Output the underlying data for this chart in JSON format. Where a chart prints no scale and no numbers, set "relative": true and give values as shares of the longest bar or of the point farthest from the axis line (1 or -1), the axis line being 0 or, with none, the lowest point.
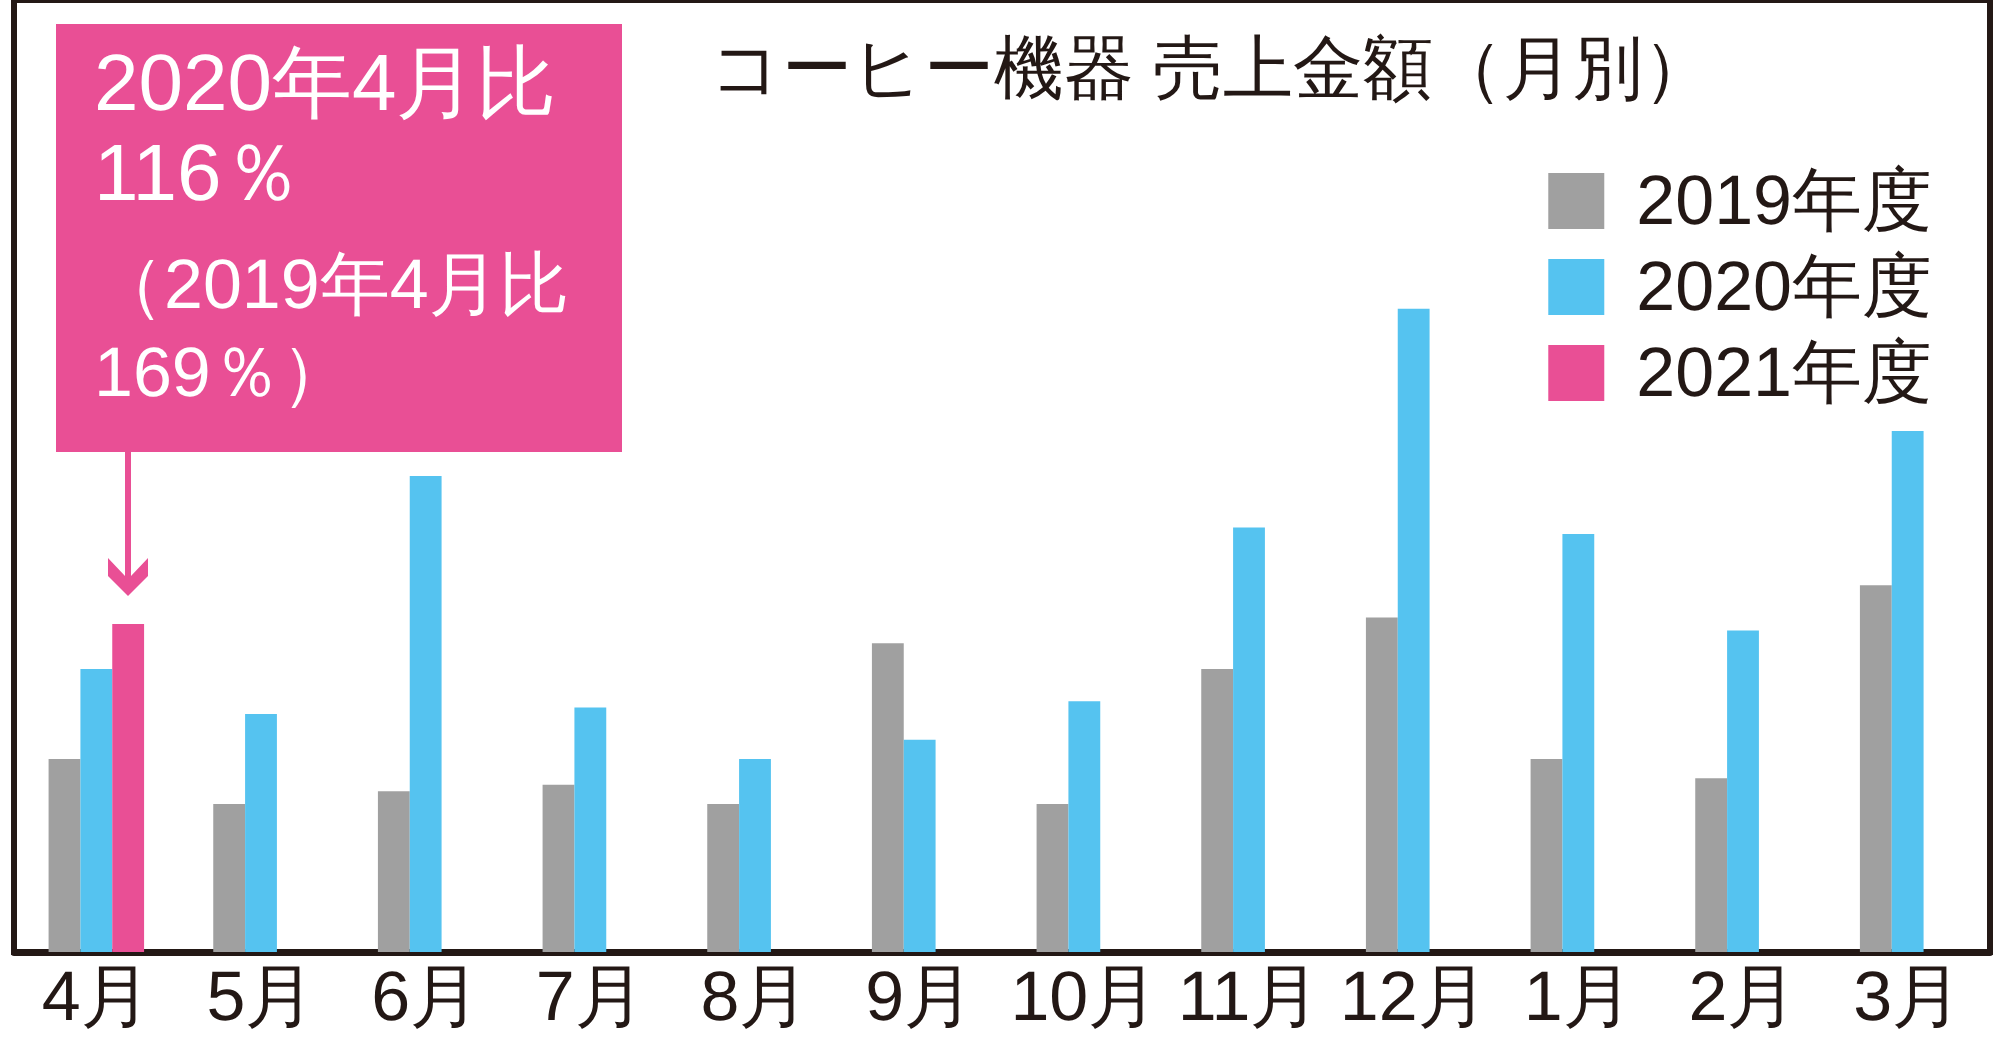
{
  "chart_data": {
    "type": "bar",
    "title": "コーヒー機器 売上金額（月別）",
    "categories": [
      "4月",
      "5月",
      "6月",
      "7月",
      "8月",
      "9月",
      "10月",
      "11月",
      "12月",
      "1月",
      "2月",
      "3月"
    ],
    "series": [
      {
        "name": "2019年度",
        "color": "#a0a0a0",
        "values": [
          0.3,
          0.23,
          0.25,
          0.26,
          0.23,
          0.48,
          0.23,
          0.44,
          0.52,
          0.3,
          0.27,
          0.57
        ]
      },
      {
        "name": "2020年度",
        "color": "#55c3f0",
        "values": [
          0.44,
          0.37,
          0.74,
          0.38,
          0.3,
          0.33,
          0.39,
          0.66,
          1,
          0.65,
          0.5,
          0.81
        ]
      },
      {
        "name": "2021年度",
        "color": "#e94f95",
        "values": [
          0.51,
          null,
          null,
          null,
          null,
          null,
          null,
          null,
          null,
          null,
          null,
          null
        ]
      }
    ],
    "relative": true,
    "legend": "top right",
    "annotations": [
      "2020年4月比116％",
      "（2019年4月比169％）"
    ]
  }
}
